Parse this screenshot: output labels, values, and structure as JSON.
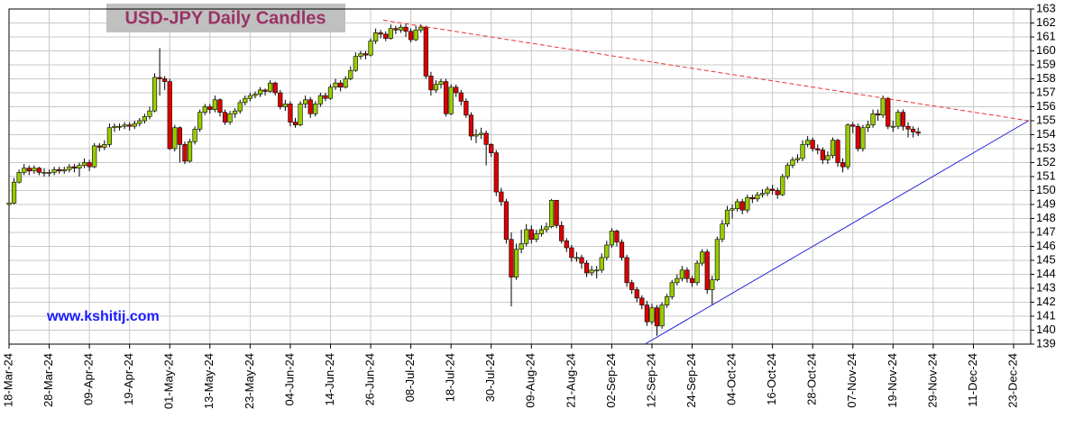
{
  "chart_data": {
    "type": "candlestick",
    "title": "USD-JPY Daily Candles",
    "watermark_url": "www.kshitij.com",
    "categories": [
      "18-Mar-24",
      null,
      null,
      null,
      null,
      null,
      null,
      null,
      "28-Mar-24",
      null,
      null,
      null,
      null,
      null,
      null,
      null,
      "09-Apr-24",
      null,
      null,
      null,
      null,
      null,
      null,
      null,
      "19-Apr-24",
      null,
      null,
      null,
      null,
      null,
      null,
      null,
      "01-May-24",
      null,
      null,
      null,
      null,
      null,
      null,
      null,
      "13-May-24",
      null,
      null,
      null,
      null,
      null,
      null,
      null,
      "23-May-24",
      null,
      null,
      null,
      null,
      null,
      null,
      null,
      "04-Jun-24",
      null,
      null,
      null,
      null,
      null,
      null,
      null,
      "14-Jun-24",
      null,
      null,
      null,
      null,
      null,
      null,
      null,
      "26-Jun-24",
      null,
      null,
      null,
      null,
      null,
      null,
      null,
      "08-Jul-24",
      null,
      null,
      null,
      null,
      null,
      null,
      null,
      "18-Jul-24",
      null,
      null,
      null,
      null,
      null,
      null,
      null,
      "30-Jul-24",
      null,
      null,
      null,
      null,
      null,
      null,
      null,
      "09-Aug-24",
      null,
      null,
      null,
      null,
      null,
      null,
      null,
      "21-Aug-24",
      null,
      null,
      null,
      null,
      null,
      null,
      null,
      "02-Sep-24",
      null,
      null,
      null,
      null,
      null,
      null,
      null,
      "12-Sep-24",
      null,
      null,
      null,
      null,
      null,
      null,
      null,
      "24-Sep-24",
      null,
      null,
      null,
      null,
      null,
      null,
      null,
      "04-Oct-24",
      null,
      null,
      null,
      null,
      null,
      null,
      null,
      "16-Oct-24",
      null,
      null,
      null,
      null,
      null,
      null,
      null,
      "28-Oct-24",
      null,
      null,
      null,
      null,
      null,
      null,
      null,
      "07-Nov-24",
      null,
      null,
      null,
      null,
      null,
      null,
      null,
      "19-Nov-24",
      null,
      null,
      null,
      null,
      null,
      null,
      null,
      "29-Nov-24",
      null,
      null,
      null,
      null,
      null,
      null,
      null,
      "11-Dec-24",
      null,
      null,
      null,
      null,
      null,
      null,
      null,
      "23-Dec-24"
    ],
    "open": [
      149.0,
      149.1,
      150.6,
      151.3,
      151.6,
      151.4,
      151.6,
      151.3,
      151.3,
      151.3,
      151.5,
      151.4,
      151.5,
      151.7,
      151.6,
      151.8,
      152.0,
      151.7,
      153.2,
      153.1,
      153.3,
      154.5,
      154.6,
      154.6,
      154.7,
      154.6,
      154.8,
      155.0,
      155.3,
      155.7,
      158.1,
      158.0,
      157.8,
      153.0,
      154.5,
      153.3,
      152.1,
      153.5,
      154.4,
      155.6,
      156.0,
      155.8,
      156.5,
      155.6,
      154.9,
      155.5,
      155.7,
      156.3,
      156.6,
      156.8,
      156.9,
      157.2,
      157.1,
      157.7,
      157.0,
      156.0,
      156.2,
      154.9,
      154.7,
      156.2,
      156.5,
      155.5,
      156.2,
      156.8,
      156.6,
      157.4,
      157.7,
      157.4,
      158.0,
      158.6,
      159.6,
      159.8,
      159.7,
      160.7,
      161.3,
      161.2,
      160.9,
      161.6,
      161.5,
      161.7,
      161.4,
      160.8,
      161.5,
      161.7,
      158.2,
      157.2,
      157.6,
      157.8,
      155.5,
      157.4,
      157.0,
      156.4,
      155.4,
      153.9,
      154.0,
      154.1,
      153.3,
      152.7,
      149.9,
      149.2,
      146.5,
      143.8,
      145.8,
      146.2,
      147.2,
      146.5,
      146.9,
      147.2,
      147.4,
      149.3,
      147.5,
      146.4,
      145.9,
      145.2,
      145.2,
      144.8,
      144.1,
      144.3,
      144.3,
      145.2,
      146.1,
      147.1,
      146.3,
      145.2,
      143.4,
      142.9,
      142.3,
      141.8,
      140.6,
      141.6,
      140.3,
      141.8,
      142.4,
      143.4,
      143.7,
      144.3,
      143.7,
      143.4,
      144.8,
      145.6,
      142.9,
      143.6,
      146.5,
      147.6,
      148.6,
      148.7,
      149.2,
      148.6,
      149.5,
      149.4,
      149.7,
      149.8,
      150.1,
      150.0,
      149.7,
      151.0,
      151.8,
      152.2,
      152.3,
      153.3,
      153.6,
      153.0,
      152.9,
      152.2,
      152.5,
      153.6,
      152.0,
      151.7,
      154.7,
      154.6,
      153.0,
      154.5,
      154.7,
      155.5,
      155.4,
      156.6,
      154.6,
      154.6,
      155.6,
      154.6,
      154.4,
      154.2,
      null,
      null,
      null,
      null,
      null,
      null,
      null,
      null,
      null,
      null,
      null,
      null,
      null,
      null,
      null,
      null,
      null,
      null,
      null
    ],
    "high": [
      149.4,
      150.9,
      151.5,
      151.9,
      151.8,
      151.8,
      151.7,
      151.6,
      151.5,
      151.7,
      151.7,
      151.7,
      151.9,
      151.9,
      152.0,
      152.3,
      152.2,
      153.4,
      153.4,
      153.6,
      154.8,
      154.8,
      154.8,
      154.9,
      154.9,
      155.0,
      155.2,
      155.5,
      156.0,
      158.4,
      160.2,
      158.2,
      158.0,
      154.7,
      154.6,
      153.5,
      153.7,
      154.6,
      155.8,
      156.2,
      156.2,
      156.8,
      156.6,
      155.8,
      155.7,
      155.9,
      156.5,
      156.8,
      157.0,
      157.1,
      157.4,
      157.3,
      157.9,
      157.8,
      157.2,
      156.5,
      156.4,
      155.2,
      156.4,
      156.8,
      156.7,
      156.4,
      157.0,
      157.0,
      157.6,
      158.0,
      157.9,
      158.2,
      158.9,
      159.9,
      160.0,
      160.0,
      160.9,
      161.6,
      161.5,
      161.4,
      161.9,
      161.8,
      161.9,
      161.9,
      161.6,
      161.8,
      161.9,
      161.8,
      158.5,
      157.9,
      158.0,
      158.0,
      157.6,
      157.6,
      157.2,
      156.6,
      155.6,
      154.4,
      154.5,
      154.3,
      153.4,
      152.9,
      150.2,
      149.4,
      147.0,
      146.2,
      147.2,
      147.6,
      147.5,
      147.2,
      147.5,
      147.7,
      149.4,
      149.3,
      147.8,
      146.6,
      146.1,
      145.6,
      145.4,
      145.0,
      144.6,
      144.6,
      145.5,
      146.4,
      147.3,
      147.2,
      146.5,
      145.4,
      143.6,
      143.1,
      142.5,
      142.1,
      141.9,
      141.8,
      142.0,
      142.6,
      143.6,
      144.0,
      144.6,
      144.5,
      143.9,
      145.0,
      145.8,
      145.8,
      143.9,
      146.7,
      147.9,
      148.9,
      149.0,
      149.4,
      149.4,
      149.7,
      149.7,
      149.9,
      150.1,
      150.3,
      150.4,
      150.2,
      151.2,
      152.0,
      152.4,
      152.6,
      153.6,
      153.9,
      153.8,
      153.3,
      153.1,
      152.8,
      153.8,
      153.7,
      152.3,
      154.8,
      154.9,
      154.8,
      154.7,
      155.0,
      155.8,
      155.8,
      156.8,
      156.7,
      155.0,
      155.8,
      155.8,
      154.9,
      154.6,
      154.5,
      null,
      null,
      null,
      null,
      null,
      null,
      null,
      null,
      null,
      null,
      null,
      null,
      null,
      null,
      null,
      null,
      null,
      null,
      null
    ],
    "low": [
      148.8,
      149.0,
      150.5,
      151.1,
      151.1,
      151.2,
      151.1,
      151.0,
      151.0,
      151.1,
      151.2,
      151.2,
      151.3,
      151.3,
      151.0,
      151.6,
      151.4,
      151.6,
      152.8,
      152.9,
      153.1,
      154.2,
      154.3,
      154.4,
      154.3,
      154.4,
      154.6,
      154.8,
      155.1,
      155.6,
      156.8,
      157.2,
      152.9,
      152.8,
      152.0,
      151.9,
      152.0,
      153.3,
      154.2,
      155.4,
      155.5,
      155.6,
      155.3,
      154.7,
      154.7,
      155.2,
      155.5,
      156.1,
      156.4,
      156.6,
      156.7,
      156.8,
      157.0,
      156.8,
      155.8,
      155.7,
      154.6,
      154.5,
      154.6,
      155.9,
      155.2,
      155.3,
      156.0,
      156.4,
      156.5,
      157.2,
      157.1,
      157.3,
      157.9,
      158.5,
      159.4,
      159.4,
      159.6,
      160.5,
      160.9,
      160.7,
      160.8,
      161.2,
      161.3,
      161.0,
      160.6,
      160.7,
      161.3,
      158.0,
      156.8,
      157.0,
      157.3,
      155.3,
      155.4,
      156.7,
      156.1,
      155.2,
      153.6,
      153.4,
      153.7,
      151.8,
      152.4,
      149.6,
      148.9,
      146.2,
      141.7,
      143.6,
      145.5,
      146.0,
      146.2,
      146.3,
      146.7,
      147.0,
      147.3,
      147.3,
      146.2,
      145.6,
      144.9,
      144.9,
      144.4,
      143.8,
      143.9,
      143.7,
      144.1,
      145.0,
      145.9,
      146.0,
      145.0,
      143.1,
      142.6,
      142.0,
      141.5,
      140.3,
      140.4,
      139.6,
      140.1,
      141.6,
      142.2,
      143.2,
      143.5,
      143.4,
      143.1,
      143.2,
      144.6,
      142.6,
      141.8,
      143.5,
      146.3,
      147.4,
      148.0,
      148.5,
      148.3,
      148.4,
      149.1,
      149.2,
      149.5,
      149.6,
      149.7,
      149.4,
      149.6,
      150.8,
      151.6,
      152.0,
      152.1,
      153.1,
      152.8,
      152.6,
      151.9,
      151.9,
      152.3,
      151.7,
      151.3,
      151.5,
      154.1,
      152.8,
      152.8,
      154.2,
      154.5,
      155.0,
      155.2,
      154.4,
      154.2,
      154.4,
      154.3,
      153.8,
      153.8,
      153.9,
      null,
      null,
      null,
      null,
      null,
      null,
      null,
      null,
      null,
      null,
      null,
      null,
      null,
      null,
      null,
      null,
      null,
      null,
      null
    ],
    "close": [
      149.1,
      150.6,
      151.3,
      151.6,
      151.4,
      151.6,
      151.3,
      151.3,
      151.3,
      151.5,
      151.4,
      151.5,
      151.7,
      151.6,
      151.8,
      152.0,
      151.7,
      153.2,
      153.1,
      153.3,
      154.5,
      154.6,
      154.6,
      154.7,
      154.6,
      154.8,
      155.0,
      155.3,
      155.7,
      158.1,
      158.0,
      157.8,
      153.0,
      154.5,
      153.3,
      152.1,
      153.5,
      154.4,
      155.6,
      156.0,
      155.8,
      156.5,
      155.6,
      154.9,
      155.5,
      155.7,
      156.3,
      156.6,
      156.8,
      156.9,
      157.2,
      157.1,
      157.7,
      157.0,
      156.0,
      156.2,
      154.9,
      154.7,
      156.2,
      156.5,
      155.5,
      156.2,
      156.8,
      156.6,
      157.4,
      157.7,
      157.4,
      158.0,
      158.6,
      159.6,
      159.8,
      159.7,
      160.7,
      161.3,
      161.2,
      160.9,
      161.6,
      161.5,
      161.7,
      161.4,
      160.8,
      161.5,
      161.7,
      158.2,
      157.2,
      157.6,
      157.8,
      155.5,
      157.4,
      157.0,
      156.4,
      155.4,
      153.9,
      154.0,
      154.1,
      153.3,
      152.7,
      149.9,
      149.2,
      146.5,
      143.8,
      145.8,
      146.2,
      147.2,
      146.5,
      146.9,
      147.2,
      147.4,
      149.3,
      147.5,
      146.4,
      145.9,
      145.2,
      145.2,
      144.8,
      144.1,
      144.3,
      144.3,
      145.2,
      146.1,
      147.1,
      146.3,
      145.2,
      143.4,
      142.9,
      142.3,
      141.8,
      140.6,
      141.6,
      140.3,
      141.8,
      142.4,
      143.4,
      143.7,
      144.3,
      143.7,
      143.4,
      144.8,
      145.6,
      142.9,
      143.6,
      146.5,
      147.6,
      148.6,
      148.7,
      149.2,
      148.6,
      149.5,
      149.4,
      149.7,
      149.8,
      150.1,
      150.0,
      149.7,
      151.0,
      151.8,
      152.2,
      152.3,
      153.3,
      153.6,
      153.0,
      152.9,
      152.2,
      152.5,
      153.6,
      152.0,
      151.7,
      154.7,
      154.6,
      153.0,
      154.5,
      154.7,
      155.5,
      155.4,
      156.6,
      154.6,
      154.6,
      155.6,
      154.6,
      154.4,
      154.2,
      154.1,
      null,
      null,
      null,
      null,
      null,
      null,
      null,
      null,
      null,
      null,
      null,
      null,
      null,
      null,
      null,
      null,
      null,
      null,
      null
    ],
    "up_color": "#99cc00",
    "down_color": "#dd0000",
    "trendlines": [
      {
        "color": "#ee3333",
        "dashed": true,
        "x": [
          74.5,
          203
        ],
        "y": [
          162.2,
          155.0
        ]
      },
      {
        "color": "#2222dd",
        "dashed": false,
        "x": [
          126.6,
          203
        ],
        "y": [
          139.0,
          155.0
        ]
      }
    ],
    "ylim": [
      139,
      163
    ],
    "yticks": [
      139,
      140,
      141,
      142,
      143,
      144,
      145,
      146,
      147,
      148,
      149,
      150,
      151,
      152,
      153,
      154,
      155,
      156,
      157,
      158,
      159,
      160,
      161,
      162,
      163
    ],
    "grid": true
  }
}
